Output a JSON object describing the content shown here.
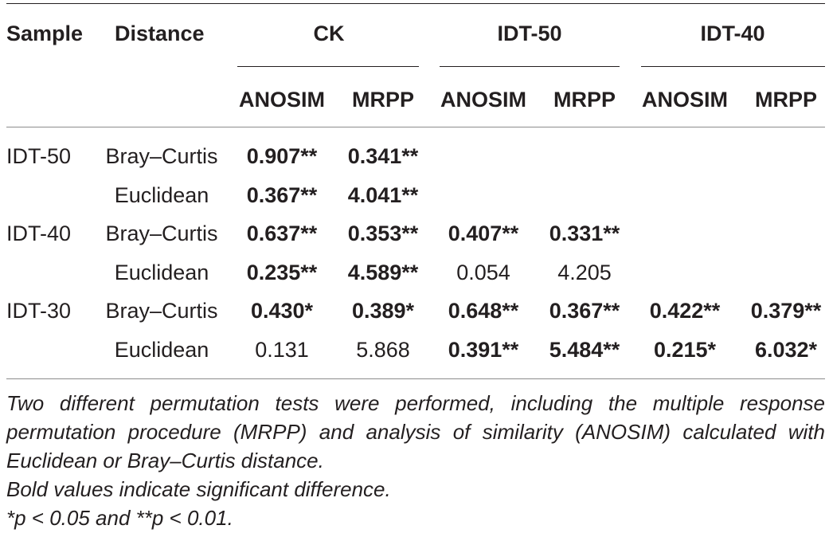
{
  "table": {
    "header": {
      "sample": "Sample",
      "distance": "Distance",
      "groups": [
        "CK",
        "IDT-50",
        "IDT-40"
      ],
      "sub": [
        "ANOSIM",
        "MRPP",
        "ANOSIM",
        "MRPP",
        "ANOSIM",
        "MRPP"
      ]
    },
    "rows": [
      {
        "sample": "IDT-50",
        "distance": "Bray–Curtis",
        "values": [
          "0.907**",
          "0.341**",
          "",
          "",
          "",
          ""
        ],
        "bold": [
          true,
          true,
          false,
          false,
          false,
          false
        ]
      },
      {
        "sample": "",
        "distance": "Euclidean",
        "values": [
          "0.367**",
          "4.041**",
          "",
          "",
          "",
          ""
        ],
        "bold": [
          true,
          true,
          false,
          false,
          false,
          false
        ]
      },
      {
        "sample": "IDT-40",
        "distance": "Bray–Curtis",
        "values": [
          "0.637**",
          "0.353**",
          "0.407**",
          "0.331**",
          "",
          ""
        ],
        "bold": [
          true,
          true,
          true,
          true,
          false,
          false
        ]
      },
      {
        "sample": "",
        "distance": "Euclidean",
        "values": [
          "0.235**",
          "4.589**",
          "0.054",
          "4.205",
          "",
          ""
        ],
        "bold": [
          true,
          true,
          false,
          false,
          false,
          false
        ]
      },
      {
        "sample": "IDT-30",
        "distance": "Bray–Curtis",
        "values": [
          "0.430*",
          "0.389*",
          "0.648**",
          "0.367**",
          "0.422**",
          "0.379**"
        ],
        "bold": [
          true,
          true,
          true,
          true,
          true,
          true
        ]
      },
      {
        "sample": "",
        "distance": "Euclidean",
        "values": [
          "0.131",
          "5.868",
          "0.391**",
          "5.484**",
          "0.215*",
          "6.032*"
        ],
        "bold": [
          false,
          false,
          true,
          true,
          true,
          true
        ]
      }
    ]
  },
  "footnotes": {
    "line1": "Two different permutation tests were performed, including the multiple response permutation procedure (MRPP) and analysis of similarity (ANOSIM) calculated with Euclidean or Bray–Curtis distance.",
    "line2": "Bold values indicate significant difference.",
    "line3": "*p < 0.05 and **p < 0.01."
  }
}
